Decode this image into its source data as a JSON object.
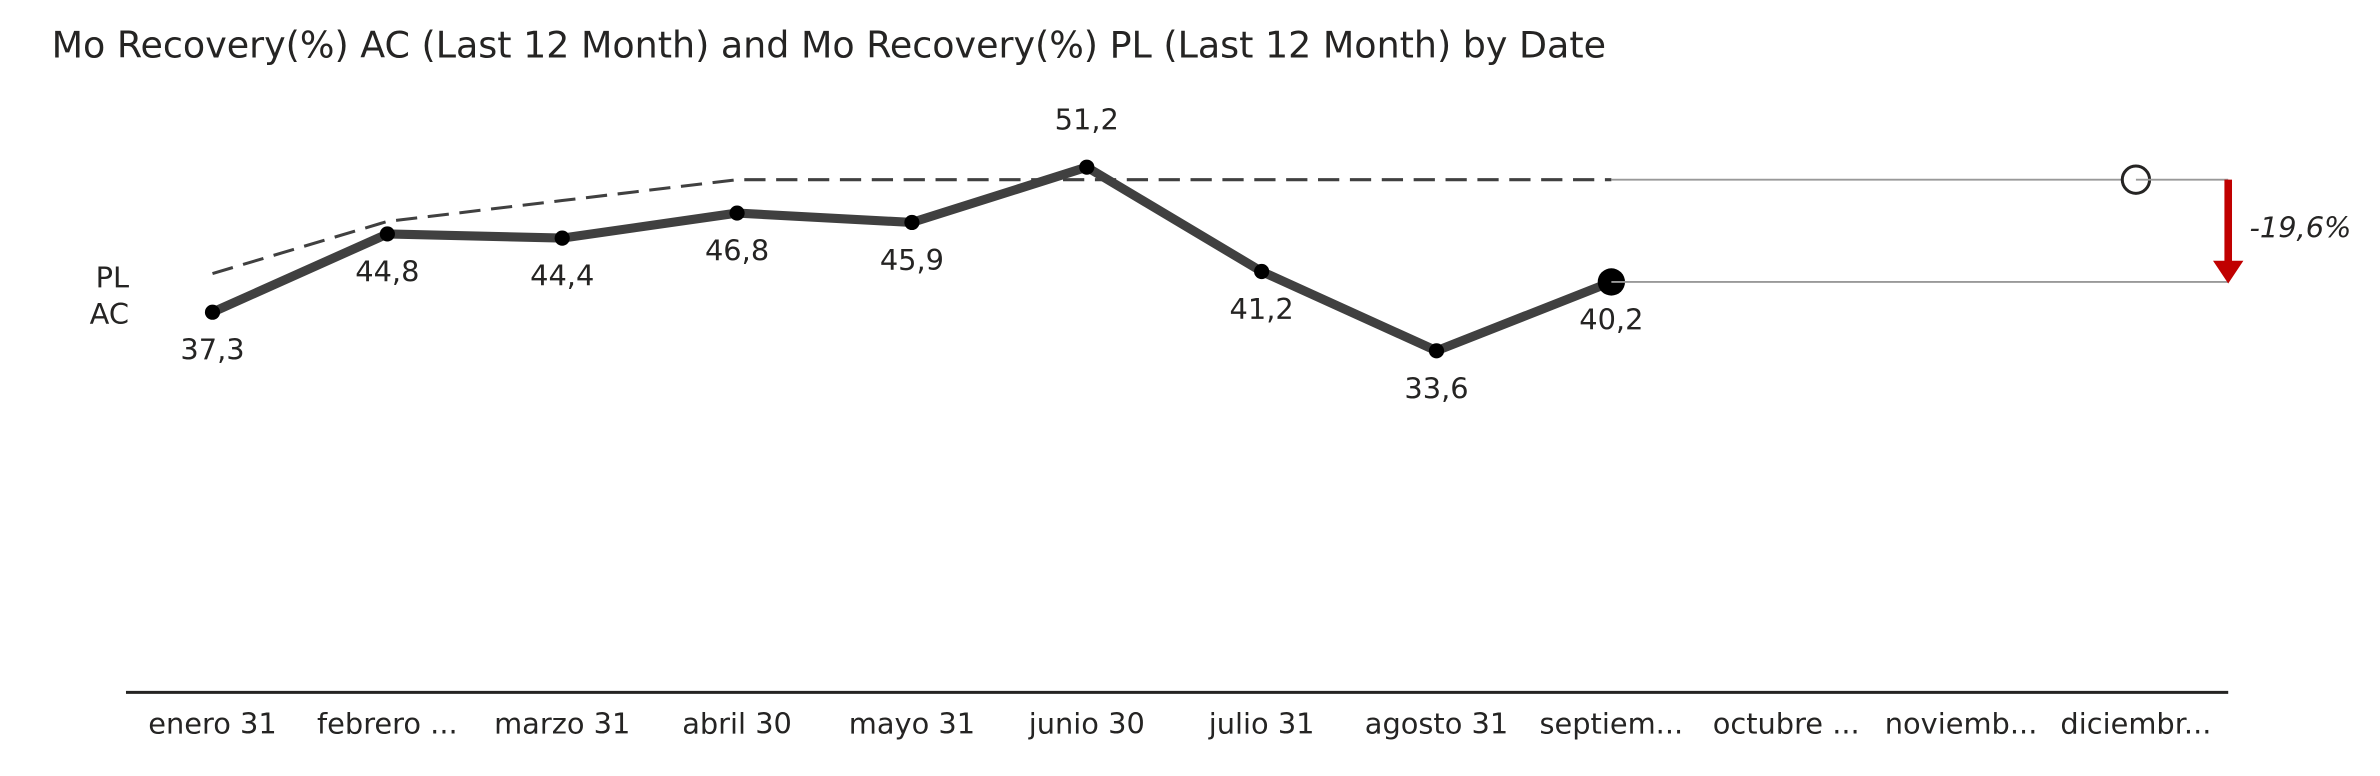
{
  "chart_data": {
    "type": "line",
    "title": "Mo Recovery(%) AC (Last 12 Month) and Mo Recovery(%) PL (Last 12 Month) by Date",
    "categories": [
      "enero 31",
      "febrero ...",
      "marzo 31",
      "abril 30",
      "mayo 31",
      "junio 30",
      "julio 31",
      "agosto 31",
      "septiem...",
      "octubre ...",
      "noviemb...",
      "diciembr..."
    ],
    "series": [
      {
        "name": "AC",
        "color": "#404040",
        "values": [
          37.3,
          44.8,
          44.4,
          46.8,
          45.9,
          51.2,
          41.2,
          33.6,
          40.2,
          null,
          null,
          null
        ],
        "value_labels": [
          "37,3",
          "44,8",
          "44,4",
          "46,8",
          "45,9",
          "51,2",
          "41,2",
          "33,6",
          "40,2",
          null,
          null,
          null
        ]
      },
      {
        "name": "PL",
        "color": "#404040",
        "values": [
          41,
          46,
          48,
          50,
          50,
          50,
          50,
          50,
          50,
          50,
          50,
          50
        ]
      }
    ],
    "ylim": [
      0,
      60
    ],
    "variance": {
      "value": -19.6,
      "label": "-19,6%",
      "color": "#c00000"
    }
  }
}
